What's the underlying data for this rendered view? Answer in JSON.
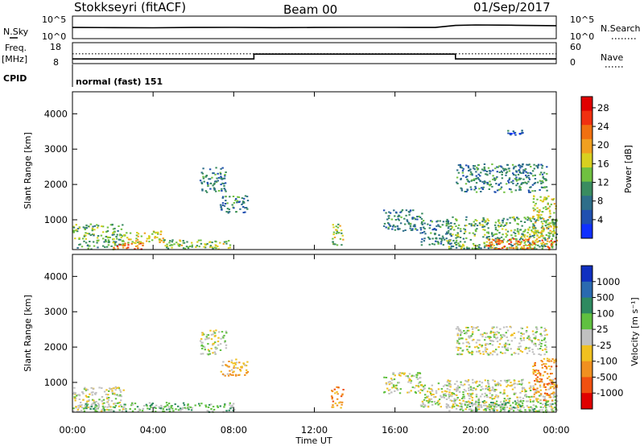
{
  "header": {
    "station": "Stokkseyri (fitACF)",
    "beam": "Beam 00",
    "date": "01/Sep/2017"
  },
  "panels": {
    "nsky": {
      "left_label": "N.Sky",
      "left_ticks": [
        "10^5",
        "10^0"
      ],
      "right_ticks": [
        "10^5",
        "10^0"
      ],
      "right_label": "N.Search"
    },
    "freq": {
      "left_label_top": "Freq.",
      "left_label_unit": "[MHz]",
      "left_ticks": [
        "18",
        "8"
      ],
      "right_ticks": [
        "60",
        "0"
      ],
      "right_label": "Nave"
    },
    "cpid": {
      "label": "CPID",
      "text": "normal (fast) 151"
    }
  },
  "axes": {
    "ylabel": "Slant Range [km]",
    "yticks": [
      "1000",
      "2000",
      "3000",
      "4000"
    ],
    "xticks": [
      "00:00",
      "04:00",
      "08:00",
      "12:00",
      "16:00",
      "20:00",
      "00:00"
    ],
    "xlabel": "Time UT"
  },
  "colorbars": {
    "power": {
      "label": "Power [dB]",
      "ticks": [
        "4",
        "8",
        "12",
        "16",
        "20",
        "24",
        "28"
      ],
      "colors": [
        "#1030ff",
        "#2050b0",
        "#2e6e8a",
        "#3a8c60",
        "#70c040",
        "#d8d020",
        "#f0a020",
        "#f07010",
        "#f03010",
        "#e00000"
      ]
    },
    "velocity": {
      "label": "Velocity [m s⁻¹]",
      "ticks": [
        "1000",
        "500",
        "100",
        "25",
        "-25",
        "-100",
        "-500",
        "-1000"
      ],
      "colors": [
        "#1030c0",
        "#2a6ab0",
        "#2e8a60",
        "#60c040",
        "#c0c0c0",
        "#f0c020",
        "#f09020",
        "#f05010",
        "#e00000"
      ]
    }
  },
  "chart_data": [
    {
      "type": "line",
      "title": "N.Sky / N.Search",
      "x_unit": "hours UT",
      "x": [
        0,
        2,
        4,
        6,
        8,
        10,
        12,
        14,
        16,
        18,
        19,
        20,
        22,
        24
      ],
      "series": [
        {
          "name": "N.Sky",
          "values": [
            300,
            280,
            250,
            300,
            320,
            280,
            300,
            320,
            310,
            300,
            900,
            1200,
            1000,
            800
          ]
        }
      ],
      "ylim": [
        1,
        100000
      ],
      "yscale": "log"
    },
    {
      "type": "line",
      "title": "Freq. [MHz] / Nave",
      "x_unit": "hours UT",
      "series": [
        {
          "name": "Freq.",
          "points": [
            [
              0,
              10
            ],
            [
              9,
              10
            ],
            [
              9,
              12.5
            ],
            [
              19,
              12.5
            ],
            [
              19,
              10
            ],
            [
              24,
              10
            ]
          ]
        },
        {
          "name": "Nave",
          "points": [
            [
              0,
              28
            ],
            [
              24,
              28
            ]
          ]
        }
      ],
      "ylim": [
        8,
        18
      ],
      "y2lim": [
        0,
        60
      ]
    },
    {
      "type": "heatmap",
      "title": "Power [dB]",
      "xlabel": "Time UT",
      "ylabel": "Slant Range [km]",
      "xlim": [
        0,
        24
      ],
      "ylim": [
        180,
        4600
      ],
      "zlim": [
        0,
        30
      ],
      "blobs": [
        {
          "x0": 0.0,
          "x1": 2.5,
          "y0": 180,
          "y1": 900,
          "z": 12
        },
        {
          "x0": 2.0,
          "x1": 3.5,
          "y0": 180,
          "y1": 400,
          "z": 24
        },
        {
          "x0": 2.5,
          "x1": 4.5,
          "y0": 350,
          "y1": 700,
          "z": 16
        },
        {
          "x0": 4.5,
          "x1": 8.0,
          "y0": 180,
          "y1": 450,
          "z": 14
        },
        {
          "x0": 6.3,
          "x1": 7.6,
          "y0": 1800,
          "y1": 2500,
          "z": 8
        },
        {
          "x0": 7.3,
          "x1": 8.7,
          "y0": 1200,
          "y1": 1700,
          "z": 8
        },
        {
          "x0": 12.8,
          "x1": 13.4,
          "y0": 300,
          "y1": 900,
          "z": 14
        },
        {
          "x0": 15.4,
          "x1": 17.3,
          "y0": 700,
          "y1": 1300,
          "z": 8
        },
        {
          "x0": 17.2,
          "x1": 18.8,
          "y0": 300,
          "y1": 1000,
          "z": 8
        },
        {
          "x0": 18.5,
          "x1": 24.0,
          "y0": 180,
          "y1": 1100,
          "z": 12
        },
        {
          "x0": 20.5,
          "x1": 24.0,
          "y0": 180,
          "y1": 500,
          "z": 22
        },
        {
          "x0": 19.0,
          "x1": 23.5,
          "y0": 1800,
          "y1": 2600,
          "z": 8
        },
        {
          "x0": 22.8,
          "x1": 24.0,
          "y0": 500,
          "y1": 1700,
          "z": 16
        },
        {
          "x0": 21.5,
          "x1": 22.3,
          "y0": 3400,
          "y1": 3550,
          "z": 4
        }
      ]
    },
    {
      "type": "heatmap",
      "title": "Velocity [m s⁻¹]",
      "xlabel": "Time UT",
      "ylabel": "Slant Range [km]",
      "xlim": [
        0,
        24
      ],
      "ylim": [
        180,
        4600
      ],
      "zlim": [
        -1000,
        1000
      ],
      "blobs": [
        {
          "x0": 0.0,
          "x1": 2.5,
          "y0": 180,
          "y1": 900,
          "z": 5
        },
        {
          "x0": 0.5,
          "x1": 4.5,
          "y0": 180,
          "y1": 450,
          "z": 60
        },
        {
          "x0": 4.5,
          "x1": 8.0,
          "y0": 180,
          "y1": 450,
          "z": 60
        },
        {
          "x0": 6.3,
          "x1": 7.6,
          "y0": 1800,
          "y1": 2500,
          "z": 0
        },
        {
          "x0": 7.3,
          "x1": 8.7,
          "y0": 1200,
          "y1": 1700,
          "z": -80
        },
        {
          "x0": 12.8,
          "x1": 13.4,
          "y0": 300,
          "y1": 900,
          "z": -200
        },
        {
          "x0": 15.4,
          "x1": 17.3,
          "y0": 700,
          "y1": 1300,
          "z": 0
        },
        {
          "x0": 17.2,
          "x1": 18.8,
          "y0": 300,
          "y1": 1000,
          "z": 10
        },
        {
          "x0": 18.5,
          "x1": 24.0,
          "y0": 180,
          "y1": 1100,
          "z": 0
        },
        {
          "x0": 19.0,
          "x1": 24.0,
          "y0": 180,
          "y1": 500,
          "z": 60
        },
        {
          "x0": 19.0,
          "x1": 23.5,
          "y0": 1800,
          "y1": 2600,
          "z": 0
        },
        {
          "x0": 22.8,
          "x1": 24.0,
          "y0": 500,
          "y1": 1700,
          "z": -300
        }
      ]
    }
  ]
}
